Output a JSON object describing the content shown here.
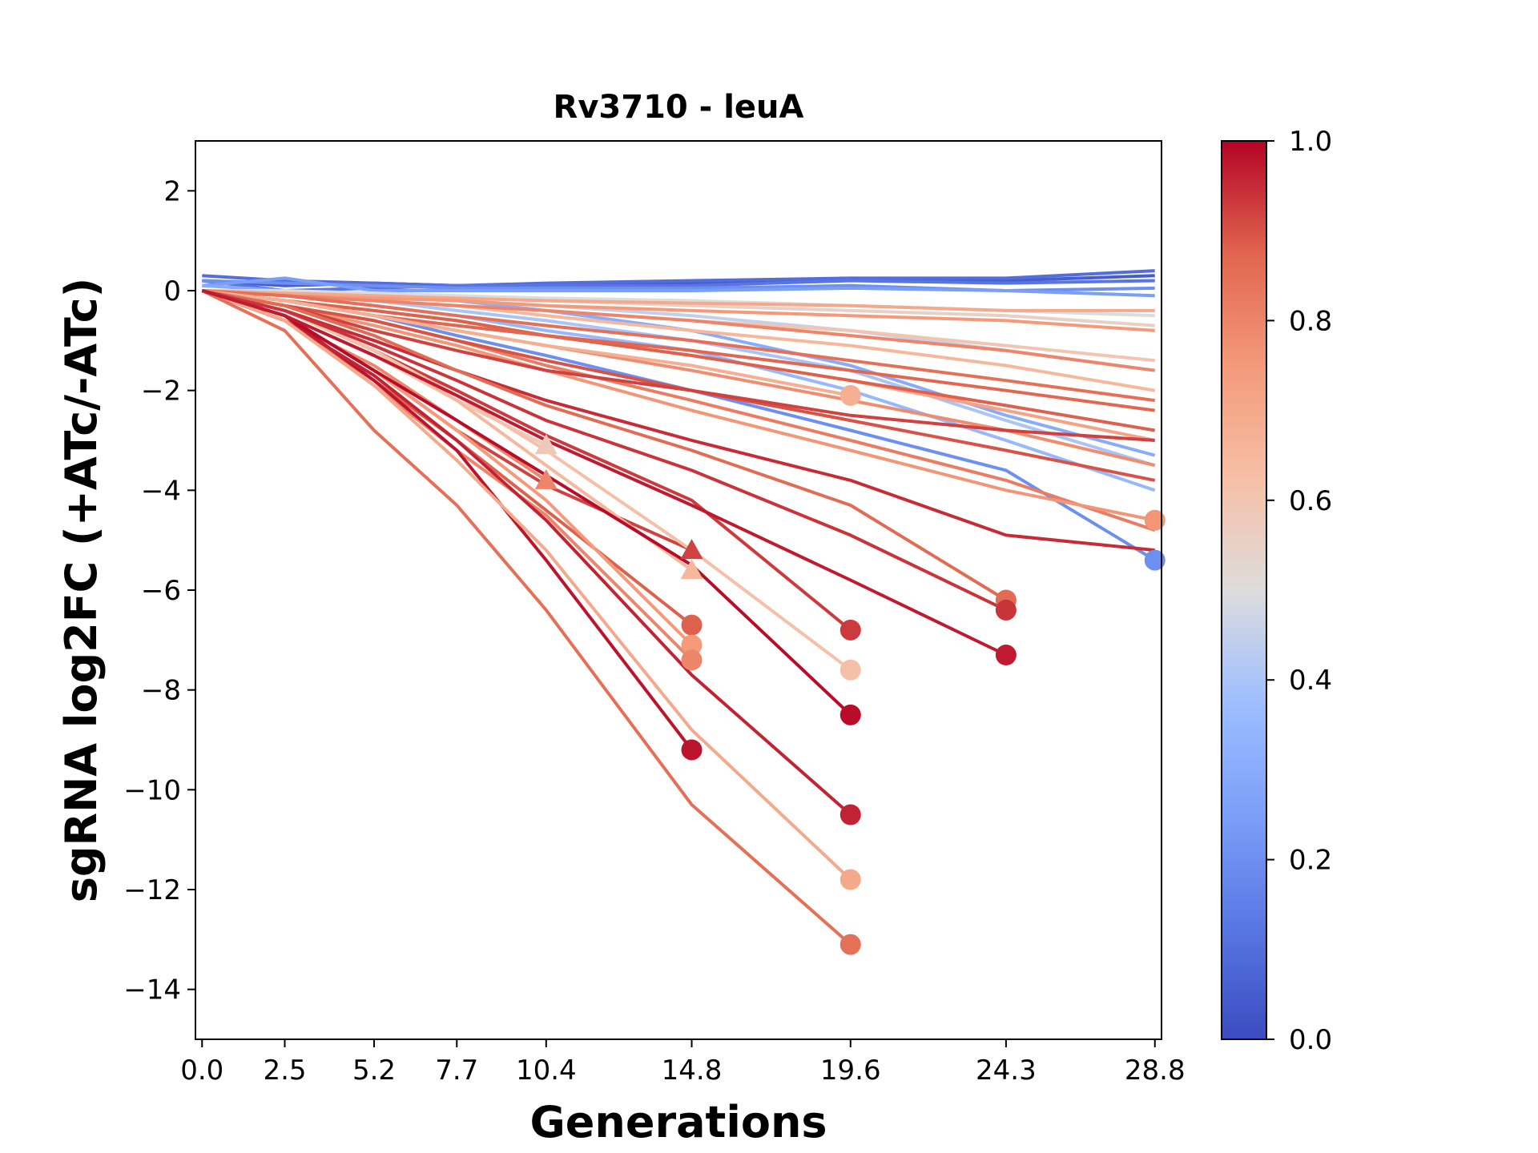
{
  "chart_data": {
    "type": "line",
    "title": "Rv3710 - leuA",
    "xlabel": "Generations",
    "ylabel": "sgRNA log2FC (+ATc/-ATc)",
    "xticks": [
      0.0,
      2.5,
      5.2,
      7.7,
      10.4,
      14.8,
      19.6,
      24.3,
      28.8
    ],
    "xtick_labels": [
      "0.0",
      "2.5",
      "5.2",
      "7.7",
      "10.4",
      "14.8",
      "19.6",
      "24.3",
      "28.8"
    ],
    "yticks": [
      2,
      0,
      -2,
      -4,
      -6,
      -8,
      -10,
      -12,
      -14
    ],
    "ytick_labels": [
      "2",
      "0",
      "−2",
      "−4",
      "−6",
      "−8",
      "−10",
      "−12",
      "−14"
    ],
    "xlim": [
      -0.2,
      29.0
    ],
    "ylim": [
      -15,
      3
    ],
    "grid": false,
    "colormap": "coolwarm",
    "colorbar": {
      "range": [
        0.0,
        1.0
      ],
      "ticks": [
        0.0,
        0.2,
        0.4,
        0.6,
        0.8,
        1.0
      ],
      "tick_labels": [
        "0.0",
        "0.2",
        "0.4",
        "0.6",
        "0.8",
        "1.0"
      ]
    },
    "series": [
      {
        "color_value": 0.05,
        "y": [
          0.2,
          0.1,
          0.15,
          0.1,
          0.1,
          0.15,
          0.25,
          0.2,
          0.3
        ],
        "end_marker": "none"
      },
      {
        "color_value": 0.1,
        "y": [
          0.3,
          0.2,
          0.15,
          0.1,
          0.15,
          0.2,
          0.25,
          0.25,
          0.4
        ],
        "end_marker": "none"
      },
      {
        "color_value": 0.12,
        "y": [
          0.2,
          0.0,
          0.05,
          0.1,
          0.1,
          0.1,
          0.2,
          0.15,
          0.2
        ],
        "end_marker": "none"
      },
      {
        "color_value": 0.2,
        "y": [
          0.2,
          0.15,
          0.1,
          0.05,
          0.05,
          0.05,
          0.1,
          0.0,
          0.05
        ],
        "end_marker": "none"
      },
      {
        "color_value": 0.25,
        "y": [
          0.1,
          0.25,
          0.0,
          0.0,
          0.0,
          0.0,
          0.05,
          0.0,
          -0.1
        ],
        "end_marker": "none"
      },
      {
        "color_value": 0.3,
        "y": [
          0.1,
          0.0,
          -0.1,
          -0.2,
          -0.4,
          -0.8,
          -1.5,
          -2.5,
          -3.3
        ],
        "end_marker": "none"
      },
      {
        "color_value": 0.2,
        "y": [
          0.0,
          -0.2,
          -0.5,
          -0.9,
          -1.3,
          -2.0,
          -2.8,
          -3.6,
          -5.4
        ],
        "end_marker": "circle"
      },
      {
        "color_value": 0.35,
        "y": [
          0.0,
          -0.1,
          -0.3,
          -0.5,
          -0.8,
          -1.2,
          -2.0,
          -3.0,
          -4.0
        ],
        "end_marker": "none"
      },
      {
        "color_value": 0.4,
        "y": [
          0.0,
          -0.1,
          -0.2,
          -0.4,
          -0.6,
          -1.0,
          -1.6,
          -2.6,
          -3.5
        ],
        "end_marker": "none"
      },
      {
        "color_value": 0.45,
        "y": [
          0.0,
          -0.05,
          -0.1,
          -0.2,
          -0.3,
          -0.5,
          -0.8,
          -1.2,
          -1.6
        ],
        "end_marker": "none"
      },
      {
        "color_value": 0.5,
        "y": [
          0.0,
          0.0,
          -0.05,
          -0.1,
          -0.15,
          -0.2,
          -0.3,
          -0.4,
          -0.5
        ],
        "end_marker": "none"
      },
      {
        "color_value": 0.55,
        "y": [
          0.0,
          -0.05,
          -0.1,
          -0.15,
          -0.2,
          -0.3,
          -0.4,
          -0.5,
          -0.7
        ],
        "end_marker": "none"
      },
      {
        "color_value": 0.6,
        "y": [
          0.0,
          -0.1,
          -0.2,
          -0.3,
          -0.4,
          -0.6,
          -0.8,
          -1.1,
          -1.4
        ],
        "end_marker": "none"
      },
      {
        "color_value": 0.65,
        "y": [
          0.0,
          -0.1,
          -0.2,
          -0.3,
          -0.5,
          -0.8,
          -1.1,
          -1.5,
          -2.0
        ],
        "end_marker": "none"
      },
      {
        "color_value": 0.7,
        "y": [
          0.0,
          -0.05,
          -0.1,
          -0.15,
          -0.2,
          -0.25,
          -0.3,
          -0.4,
          -0.4
        ],
        "end_marker": "none"
      },
      {
        "color_value": 0.75,
        "y": [
          0.0,
          -0.1,
          -0.15,
          -0.2,
          -0.3,
          -0.4,
          -0.5,
          -0.6,
          -0.8
        ],
        "end_marker": "none"
      },
      {
        "color_value": 0.8,
        "y": [
          0.0,
          -0.1,
          -0.2,
          -0.3,
          -0.4,
          -0.6,
          -0.9,
          -1.2,
          -1.6
        ],
        "end_marker": "none"
      },
      {
        "color_value": 0.72,
        "y": [
          0.0,
          -0.2,
          -0.4,
          -0.6,
          -0.9,
          -1.3,
          -1.8,
          -2.4,
          -3.0
        ],
        "end_marker": "none"
      },
      {
        "color_value": 0.78,
        "y": [
          0.0,
          -0.2,
          -0.5,
          -0.8,
          -1.1,
          -1.6,
          -2.2,
          -2.8,
          -3.5
        ],
        "end_marker": "none"
      },
      {
        "color_value": 0.82,
        "y": [
          0.0,
          -0.3,
          -0.6,
          -1.0,
          -1.5,
          -2.2,
          -3.0,
          -3.8,
          -4.8
        ],
        "end_marker": "none"
      },
      {
        "color_value": 0.76,
        "y": [
          0.0,
          -0.3,
          -0.7,
          -1.1,
          -1.6,
          -2.4,
          -3.2,
          -4.0,
          -4.6
        ],
        "end_marker": "circle"
      },
      {
        "color_value": 0.85,
        "y": [
          0.0,
          -0.1,
          -0.3,
          -0.5,
          -0.7,
          -1.0,
          -1.4,
          -1.8,
          -2.2
        ],
        "end_marker": "none"
      },
      {
        "color_value": 0.88,
        "y": [
          0.0,
          -0.2,
          -0.4,
          -0.6,
          -0.9,
          -1.3,
          -1.8,
          -2.3,
          -2.8
        ],
        "end_marker": "none"
      },
      {
        "color_value": 0.9,
        "y": [
          0.0,
          -0.3,
          -0.6,
          -1.0,
          -1.4,
          -2.0,
          -2.6,
          -3.2,
          -3.8
        ],
        "end_marker": "none"
      },
      {
        "color_value": 0.95,
        "y": [
          0.0,
          -0.4,
          -1.0,
          -1.6,
          -2.2,
          -3.0,
          -3.8,
          -4.9,
          -5.2
        ],
        "end_marker": "none"
      },
      {
        "color_value": 0.92,
        "y": [
          0.0,
          -0.3,
          -0.8,
          -1.2,
          -1.6,
          -2.0,
          -2.5,
          -2.8,
          -3.0
        ],
        "end_marker": "none"
      },
      {
        "color_value": 0.87,
        "y": [
          0.0,
          -0.2,
          -0.5,
          -0.7,
          -0.9,
          -1.2,
          -1.6,
          -2.0,
          -2.4
        ],
        "end_marker": "none"
      },
      {
        "color_value": 0.68,
        "y": [
          0.0,
          -0.2,
          -0.5,
          -0.8,
          -1.1,
          -1.5,
          -2.1
        ],
        "end_marker": "circle"
      },
      {
        "color_value": 0.58,
        "y": [
          0.0,
          -0.5,
          -1.3,
          -2.2,
          -3.1
        ],
        "end_marker": "triangle"
      },
      {
        "color_value": 0.8,
        "y": [
          0.0,
          -0.6,
          -1.5,
          -2.6,
          -3.8
        ],
        "end_marker": "triangle"
      },
      {
        "color_value": 0.92,
        "y": [
          0.0,
          -0.5,
          -1.6,
          -2.8,
          -3.9,
          -5.2
        ],
        "end_marker": "triangle"
      },
      {
        "color_value": 0.65,
        "y": [
          0.0,
          -0.4,
          -1.2,
          -2.2,
          -3.5,
          -5.6
        ],
        "end_marker": "triangle"
      },
      {
        "color_value": 0.88,
        "y": [
          0.0,
          -0.6,
          -1.8,
          -3.0,
          -4.4,
          -6.7
        ],
        "end_marker": "circle"
      },
      {
        "color_value": 0.75,
        "y": [
          0.0,
          -0.5,
          -1.6,
          -2.8,
          -4.2,
          -7.1
        ],
        "end_marker": "circle"
      },
      {
        "color_value": 0.8,
        "y": [
          0.0,
          -0.6,
          -1.9,
          -3.2,
          -4.5,
          -7.4
        ],
        "end_marker": "circle"
      },
      {
        "color_value": 0.98,
        "y": [
          0.0,
          -0.5,
          -1.8,
          -3.2,
          -5.4,
          -9.2
        ],
        "end_marker": "circle"
      },
      {
        "color_value": 0.93,
        "y": [
          0.0,
          -0.4,
          -1.2,
          -2.0,
          -2.9,
          -4.2,
          -6.8
        ],
        "end_marker": "circle"
      },
      {
        "color_value": 0.62,
        "y": [
          0.0,
          -0.4,
          -1.2,
          -2.1,
          -3.2,
          -5.2,
          -7.6
        ],
        "end_marker": "circle"
      },
      {
        "color_value": 0.99,
        "y": [
          0.0,
          -0.5,
          -1.6,
          -2.6,
          -3.7,
          -5.5,
          -8.5
        ],
        "end_marker": "circle"
      },
      {
        "color_value": 0.96,
        "y": [
          0.0,
          -0.6,
          -1.7,
          -3.0,
          -4.6,
          -7.7,
          -10.5
        ],
        "end_marker": "circle"
      },
      {
        "color_value": 0.7,
        "y": [
          0.0,
          -0.6,
          -1.9,
          -3.4,
          -5.2,
          -8.8,
          -11.8
        ],
        "end_marker": "circle"
      },
      {
        "color_value": 0.85,
        "y": [
          0.0,
          -0.8,
          -2.8,
          -4.3,
          -6.4,
          -10.3,
          -13.1
        ],
        "end_marker": "circle"
      },
      {
        "color_value": 0.86,
        "y": [
          0.0,
          -0.3,
          -0.9,
          -1.6,
          -2.3,
          -3.2,
          -4.3,
          -6.2
        ],
        "end_marker": "circle"
      },
      {
        "color_value": 0.94,
        "y": [
          0.0,
          -0.4,
          -1.1,
          -1.8,
          -2.6,
          -3.6,
          -4.9,
          -6.4
        ],
        "end_marker": "circle"
      },
      {
        "color_value": 0.97,
        "y": [
          0.0,
          -0.5,
          -1.3,
          -2.1,
          -3.0,
          -4.3,
          -5.8,
          -7.3
        ],
        "end_marker": "circle"
      }
    ]
  }
}
